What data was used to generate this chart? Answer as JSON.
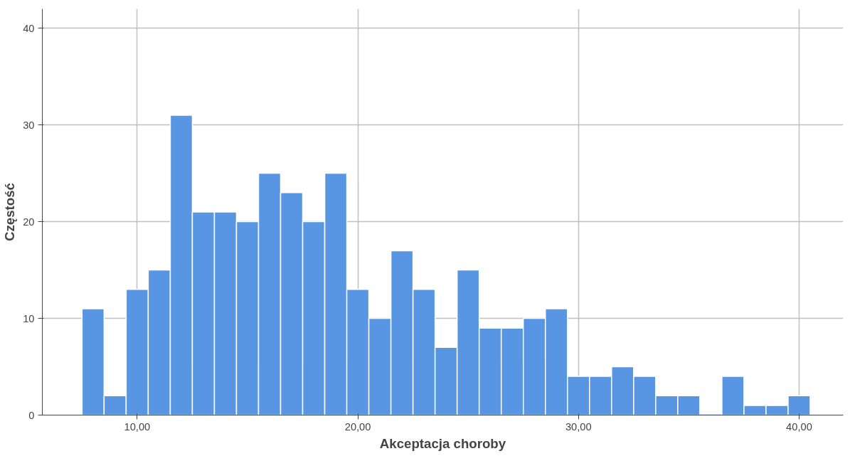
{
  "chart_data": {
    "type": "histogram",
    "xlabel": "Akceptacja choroby",
    "ylabel": "Częstość",
    "color": "#5896e3",
    "bins": [
      7.5,
      8.5,
      9.5,
      10.5,
      11.5,
      12.5,
      13.5,
      14.5,
      15.5,
      16.5,
      17.5,
      18.5,
      19.5,
      20.5,
      21.5,
      22.5,
      23.5,
      24.5,
      25.5,
      26.5,
      27.5,
      28.5,
      29.5,
      30.5,
      31.5,
      32.5,
      33.5,
      34.5,
      35.5,
      36.5,
      37.5,
      38.5,
      39.5,
      40.5
    ],
    "values": [
      11,
      2,
      13,
      15,
      31,
      21,
      21,
      20,
      25,
      23,
      20,
      25,
      13,
      10,
      17,
      13,
      7,
      15,
      9,
      9,
      10,
      11,
      4,
      4,
      5,
      4,
      2,
      2,
      0,
      4,
      1,
      1,
      2
    ],
    "xlim": [
      5.7,
      42
    ],
    "ylim": [
      0,
      42
    ],
    "xticks": [
      {
        "value": 10,
        "label": "10,00"
      },
      {
        "value": 20,
        "label": "20,00"
      },
      {
        "value": 30,
        "label": "30,00"
      },
      {
        "value": 40,
        "label": "40,00"
      }
    ],
    "yticks": [
      0,
      10,
      20,
      30,
      40
    ],
    "grid": true
  }
}
